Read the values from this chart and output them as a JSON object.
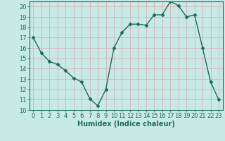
{
  "x": [
    0,
    1,
    2,
    3,
    4,
    5,
    6,
    7,
    8,
    9,
    10,
    11,
    12,
    13,
    14,
    15,
    16,
    17,
    18,
    19,
    20,
    21,
    22,
    23
  ],
  "y": [
    17.0,
    15.5,
    14.7,
    14.4,
    13.8,
    13.1,
    12.7,
    11.1,
    10.4,
    12.0,
    16.0,
    17.5,
    18.3,
    18.3,
    18.2,
    19.2,
    19.2,
    20.5,
    20.1,
    19.0,
    19.2,
    16.0,
    12.7,
    11.0
  ],
  "line_color": "#1a6b5a",
  "marker": "D",
  "markersize": 2.5,
  "linewidth": 1.0,
  "background_color": "#c8eae6",
  "grid_color": "#d8b0b0",
  "xlabel": "Humidex (Indice chaleur)",
  "xlabel_fontsize": 7,
  "tick_fontsize": 6,
  "xlim": [
    -0.5,
    23.5
  ],
  "ylim": [
    10,
    20.5
  ],
  "yticks": [
    10,
    11,
    12,
    13,
    14,
    15,
    16,
    17,
    18,
    19,
    20
  ],
  "xticks": [
    0,
    1,
    2,
    3,
    4,
    5,
    6,
    7,
    8,
    9,
    10,
    11,
    12,
    13,
    14,
    15,
    16,
    17,
    18,
    19,
    20,
    21,
    22,
    23
  ]
}
